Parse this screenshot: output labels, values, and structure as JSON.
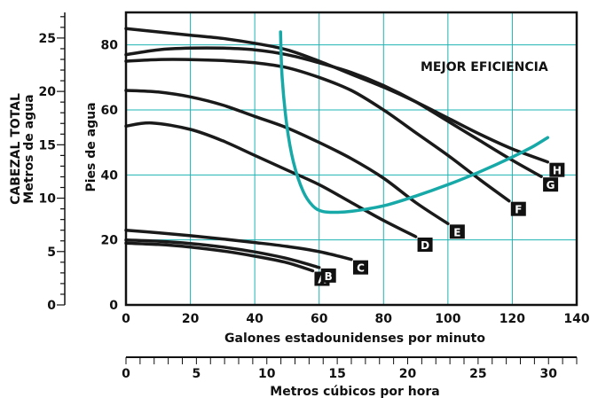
{
  "chart_data": {
    "type": "line",
    "annotation": "MEJOR EFICIENCIA",
    "xlabel": "Galones estadounidenses por minuto",
    "ylabel": "Pies de agua",
    "xlim": [
      0,
      140
    ],
    "ylim": [
      0,
      90
    ],
    "x_ticks": [
      0,
      20,
      40,
      60,
      80,
      100,
      120,
      140
    ],
    "y_ticks": [
      0,
      20,
      40,
      60,
      80
    ],
    "grid": true,
    "colors": {
      "curve": "#1a1a1a",
      "efficiency": "#17a8a8",
      "grid": "#1eb3b3",
      "label_box": "#111111"
    },
    "secondary_x_axis": {
      "label": "Metros cúbicos por hora",
      "lim": [
        0,
        32
      ],
      "ticks": [
        0,
        5,
        10,
        15,
        20,
        25,
        30
      ]
    },
    "secondary_y_axis": {
      "label_line1": "CABEZAL TOTAL",
      "label_line2": "Metros de agua",
      "lim": [
        0,
        27.4
      ],
      "ticks": [
        0,
        5,
        10,
        15,
        20,
        25
      ]
    },
    "series": [
      {
        "name": "A",
        "x": [
          0,
          10,
          20,
          30,
          40,
          50,
          58
        ],
        "y": [
          19,
          18.6,
          17.8,
          16.6,
          15,
          13,
          10.5
        ]
      },
      {
        "name": "B",
        "x": [
          0,
          10,
          20,
          30,
          40,
          50,
          60
        ],
        "y": [
          20,
          19.6,
          18.9,
          17.8,
          16.3,
          14.3,
          11.5
        ]
      },
      {
        "name": "C",
        "x": [
          0,
          10,
          20,
          30,
          40,
          50,
          60,
          70
        ],
        "y": [
          23,
          22.2,
          21.3,
          20.3,
          19.2,
          18,
          16.4,
          14
        ]
      },
      {
        "name": "D",
        "x": [
          0,
          8,
          20,
          30,
          40,
          50,
          60,
          70,
          80,
          90
        ],
        "y": [
          55,
          56,
          54,
          50.5,
          46,
          41.5,
          37,
          31.5,
          26,
          21
        ]
      },
      {
        "name": "E",
        "x": [
          0,
          10,
          20,
          30,
          40,
          50,
          60,
          70,
          80,
          90,
          100
        ],
        "y": [
          66,
          65.5,
          64,
          61.5,
          58,
          54.5,
          50,
          45,
          39,
          31.5,
          25
        ]
      },
      {
        "name": "F",
        "x": [
          0,
          10,
          20,
          30,
          40,
          50,
          60,
          70,
          80,
          90,
          100,
          110,
          119
        ],
        "y": [
          75,
          75.5,
          75.5,
          75.2,
          74.5,
          73,
          70,
          66,
          60,
          53,
          46,
          38.5,
          32
        ]
      },
      {
        "name": "G",
        "x": [
          0,
          10,
          20,
          30,
          40,
          50,
          60,
          70,
          80,
          90,
          100,
          110,
          120,
          129
        ],
        "y": [
          77,
          78.5,
          79,
          79,
          78.5,
          77,
          74.5,
          71.5,
          67.5,
          62.5,
          56.5,
          50.5,
          44.5,
          39.5
        ]
      },
      {
        "name": "H",
        "x": [
          0,
          10,
          20,
          30,
          40,
          50,
          60,
          70,
          80,
          90,
          100,
          110,
          120,
          131
        ],
        "y": [
          85,
          84,
          83,
          82,
          80.5,
          78.5,
          75,
          71,
          67,
          62.5,
          57.5,
          52.5,
          48,
          44
        ]
      }
    ],
    "efficiency_curve": {
      "name": "MEJOR EFICIENCIA",
      "x": [
        48,
        48.5,
        50,
        52,
        55,
        58,
        61,
        65,
        70,
        80,
        90,
        100,
        110,
        120,
        126,
        131
      ],
      "y": [
        84,
        70,
        55,
        44,
        35,
        30.5,
        28.8,
        28.5,
        28.8,
        30.5,
        33.5,
        37,
        41,
        45.5,
        48.5,
        51.5
      ]
    }
  }
}
